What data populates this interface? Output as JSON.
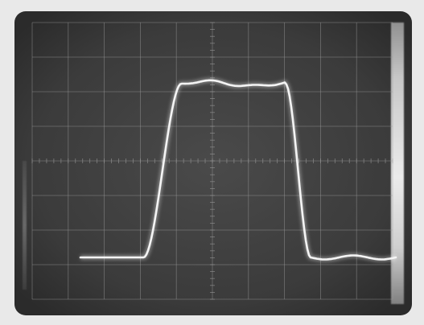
{
  "scene": {
    "subject": "oscilloscope-trace",
    "style": "monochrome-photograph",
    "colors": {
      "paper": "#e9e9e9",
      "screen": "#3c3c3c",
      "screen_edge": "#2a2a2a",
      "graticule": "#9a9a9a",
      "trace": "#f4f4f4",
      "trace_glow": "#ffffff"
    },
    "graticule": {
      "major_columns": 10,
      "major_rows": 8,
      "minor_ticks_per_division": 5
    },
    "waveform": {
      "shape": "pulse",
      "baseline_level": 0.05,
      "plateau_level": 0.97,
      "pre_pulse_fraction": 0.2,
      "rise_fraction": 0.12,
      "plateau_fraction": 0.33,
      "fall_fraction": 0.08,
      "post_ripple": true
    }
  }
}
